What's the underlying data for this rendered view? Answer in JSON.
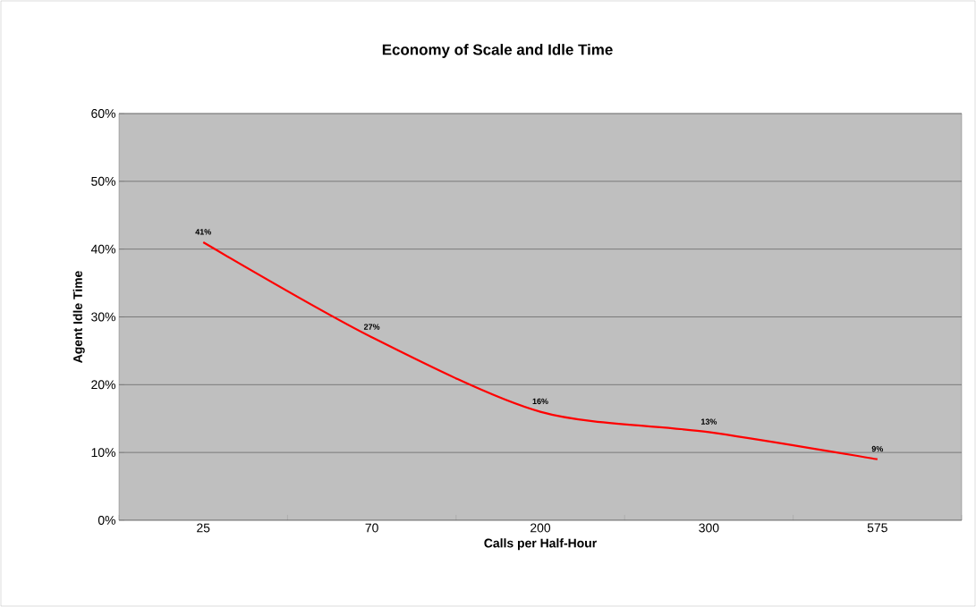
{
  "chart_data": {
    "type": "line",
    "title": "Economy of Scale and Idle Time",
    "xlabel": "Calls per Half-Hour",
    "ylabel": "Agent Idle Time",
    "categories": [
      "25",
      "70",
      "200",
      "300",
      "575"
    ],
    "series": [
      {
        "color": "#ff0000",
        "values": [
          41,
          27,
          16,
          13,
          9
        ],
        "value_labels": [
          "41%",
          "27%",
          "16%",
          "13%",
          "9%"
        ]
      }
    ],
    "ylim": [
      0,
      60
    ],
    "yticks": [
      {
        "value": 0,
        "label": "0%"
      },
      {
        "value": 10,
        "label": "10%"
      },
      {
        "value": 20,
        "label": "20%"
      },
      {
        "value": 30,
        "label": "30%"
      },
      {
        "value": 40,
        "label": "40%"
      },
      {
        "value": 50,
        "label": "50%"
      },
      {
        "value": 60,
        "label": "60%"
      }
    ],
    "grid": "y"
  }
}
